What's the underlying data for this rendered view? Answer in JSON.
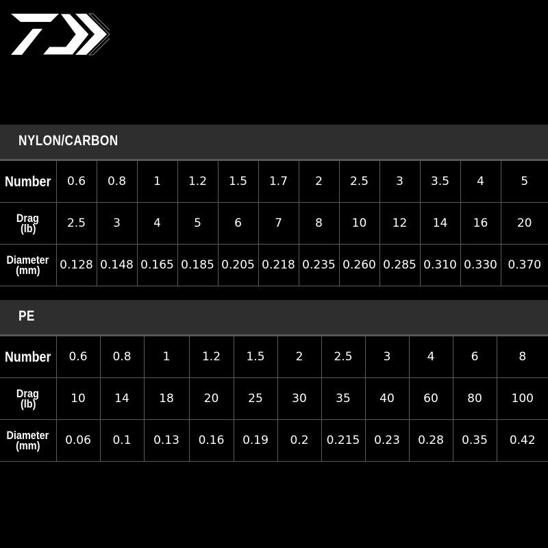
{
  "logo": {
    "icon": "daiwa-d-chevron-logo",
    "color": "#ffffff"
  },
  "colors": {
    "background": "#000000",
    "band": "#2e2e2e",
    "grid": "#5a5a5a",
    "text": "#ffffff"
  },
  "nylon": {
    "title": "NYLON/CARBON",
    "labels": {
      "number": "Number",
      "drag1": "Drag",
      "drag2": "(lb)",
      "dia1": "Diameter",
      "dia2": "(mm)"
    },
    "number": [
      "0.6",
      "0.8",
      "1",
      "1.2",
      "1.5",
      "1.7",
      "2",
      "2.5",
      "3",
      "3.5",
      "4",
      "5"
    ],
    "drag": [
      "2.5",
      "3",
      "4",
      "5",
      "6",
      "7",
      "8",
      "10",
      "12",
      "14",
      "16",
      "20"
    ],
    "diameter": [
      "0.128",
      "0.148",
      "0.165",
      "0.185",
      "0.205",
      "0.218",
      "0.235",
      "0.260",
      "0.285",
      "0.310",
      "0.330",
      "0.370"
    ]
  },
  "pe": {
    "title": "PE",
    "labels": {
      "number": "Number",
      "drag1": "Drag",
      "drag2": "(lb)",
      "dia1": "Diameter",
      "dia2": "(mm)"
    },
    "number": [
      "0.6",
      "0.8",
      "1",
      "1.2",
      "1.5",
      "2",
      "2.5",
      "3",
      "4",
      "6",
      "8"
    ],
    "drag": [
      "10",
      "14",
      "18",
      "20",
      "25",
      "30",
      "35",
      "40",
      "60",
      "80",
      "100"
    ],
    "diameter": [
      "0.06",
      "0.1",
      "0.13",
      "0.16",
      "0.19",
      "0.2",
      "0.215",
      "0.23",
      "0.28",
      "0.35",
      "0.42"
    ]
  }
}
